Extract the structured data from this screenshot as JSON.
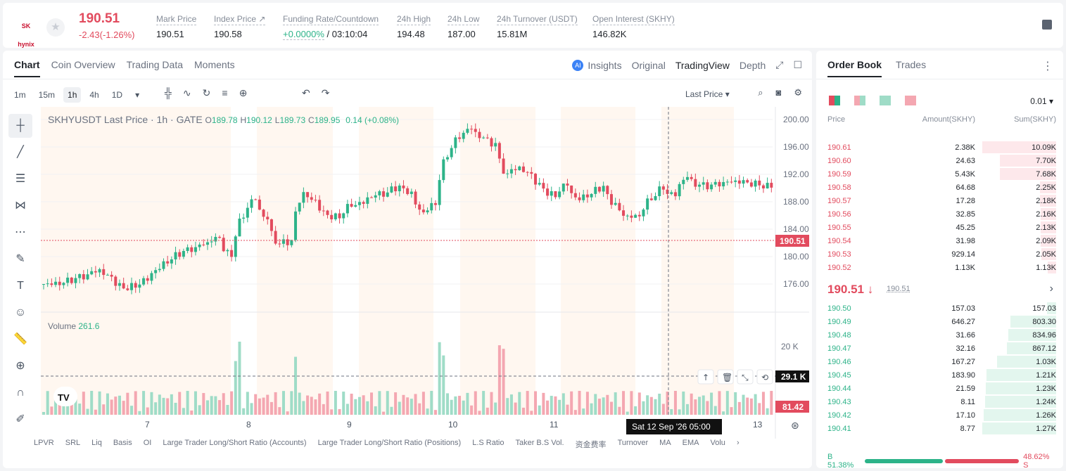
{
  "header": {
    "logo_text": "SK hynix",
    "last_price": "190.51",
    "change": "-2.43(-1.26%)",
    "stats": [
      {
        "label": "Mark Price",
        "value": "190.51"
      },
      {
        "label": "Index Price ↗",
        "value": "190.58"
      },
      {
        "label": "Funding Rate/Countdown",
        "value": "+0.0000%",
        "value2": "/ 03:10:04"
      },
      {
        "label": "24h High",
        "value": "194.48"
      },
      {
        "label": "24h Low",
        "value": "187.00"
      },
      {
        "label": "24h Turnover (USDT)",
        "value": "15.81M"
      },
      {
        "label": "Open Interest (SKHY)",
        "value": "146.82K"
      }
    ]
  },
  "chart_tabs": [
    "Chart",
    "Coin Overview",
    "Trading Data",
    "Moments"
  ],
  "view_tabs": [
    "Insights",
    "Original",
    "TradingView",
    "Depth"
  ],
  "intervals": [
    "1m",
    "15m",
    "1h",
    "4h",
    "1D"
  ],
  "last_price_select": "Last Price",
  "legend": {
    "symbol": "SKHYUSDT Last Price · 1h · GATE",
    "o": "189.78",
    "h": "190.12",
    "l": "189.73",
    "c": "189.95",
    "chg": "0.14 (+0.08%)"
  },
  "volume_legend": {
    "label": "Volume",
    "value": "261.6"
  },
  "price_axis": [
    "200.00",
    "196.00",
    "192.00",
    "188.00",
    "184.00",
    "180.00",
    "176.00"
  ],
  "volume_axis": [
    "20 K",
    "10 K"
  ],
  "price_tag": "190.51",
  "volume_tag": "29.1 K",
  "volume_last_tag": "81.42",
  "date_axis": [
    "7",
    "8",
    "9",
    "10",
    "11",
    "13"
  ],
  "crosshair_time": "Sat 12 Sep '26   05:00",
  "indicators": [
    "LPVR",
    "SRL",
    "Liq",
    "Basis",
    "OI",
    "Large Trader Long/Short Ratio (Accounts)",
    "Large Trader Long/Short Ratio (Positions)",
    "L.S Ratio",
    "Taker B.S Vol.",
    "资金费率",
    "Turnover",
    "MA",
    "EMA",
    "Volu"
  ],
  "orderbook": {
    "tabs": [
      "Order Book",
      "Trades"
    ],
    "precision": "0.01",
    "headers": [
      "Price",
      "Amount(SKHY)",
      "Sum(SKHY)"
    ],
    "asks": [
      {
        "price": "190.61",
        "amount": "2.38K",
        "sum": "10.09K",
        "depth": 1.0
      },
      {
        "price": "190.60",
        "amount": "24.63",
        "sum": "7.70K",
        "depth": 0.76
      },
      {
        "price": "190.59",
        "amount": "5.43K",
        "sum": "7.68K",
        "depth": 0.76
      },
      {
        "price": "190.58",
        "amount": "64.68",
        "sum": "2.25K",
        "depth": 0.22
      },
      {
        "price": "190.57",
        "amount": "17.28",
        "sum": "2.18K",
        "depth": 0.22
      },
      {
        "price": "190.56",
        "amount": "32.85",
        "sum": "2.16K",
        "depth": 0.21
      },
      {
        "price": "190.55",
        "amount": "45.25",
        "sum": "2.13K",
        "depth": 0.21
      },
      {
        "price": "190.54",
        "amount": "31.98",
        "sum": "2.09K",
        "depth": 0.21
      },
      {
        "price": "190.53",
        "amount": "929.14",
        "sum": "2.05K",
        "depth": 0.2
      },
      {
        "price": "190.52",
        "amount": "1.13K",
        "sum": "1.13K",
        "depth": 0.11
      }
    ],
    "mid_price": "190.51 ↓",
    "mid_mark": "190.51",
    "bids": [
      {
        "price": "190.50",
        "amount": "157.03",
        "sum": "157.03",
        "depth": 0.12
      },
      {
        "price": "190.49",
        "amount": "646.27",
        "sum": "803.30",
        "depth": 0.62
      },
      {
        "price": "190.48",
        "amount": "31.66",
        "sum": "834.96",
        "depth": 0.65
      },
      {
        "price": "190.47",
        "amount": "32.16",
        "sum": "867.12",
        "depth": 0.67
      },
      {
        "price": "190.46",
        "amount": "167.27",
        "sum": "1.03K",
        "depth": 0.8
      },
      {
        "price": "190.45",
        "amount": "183.90",
        "sum": "1.21K",
        "depth": 0.94
      },
      {
        "price": "190.44",
        "amount": "21.59",
        "sum": "1.23K",
        "depth": 0.95
      },
      {
        "price": "190.43",
        "amount": "8.11",
        "sum": "1.24K",
        "depth": 0.96
      },
      {
        "price": "190.42",
        "amount": "17.10",
        "sum": "1.26K",
        "depth": 0.98
      },
      {
        "price": "190.41",
        "amount": "8.77",
        "sum": "1.27K",
        "depth": 1.0
      }
    ],
    "buy_ratio": "B 51.38%",
    "sell_ratio": "48.62% S",
    "buy_pct": 51.38
  },
  "colors": {
    "up": "#2db389",
    "down": "#e24b5e"
  }
}
